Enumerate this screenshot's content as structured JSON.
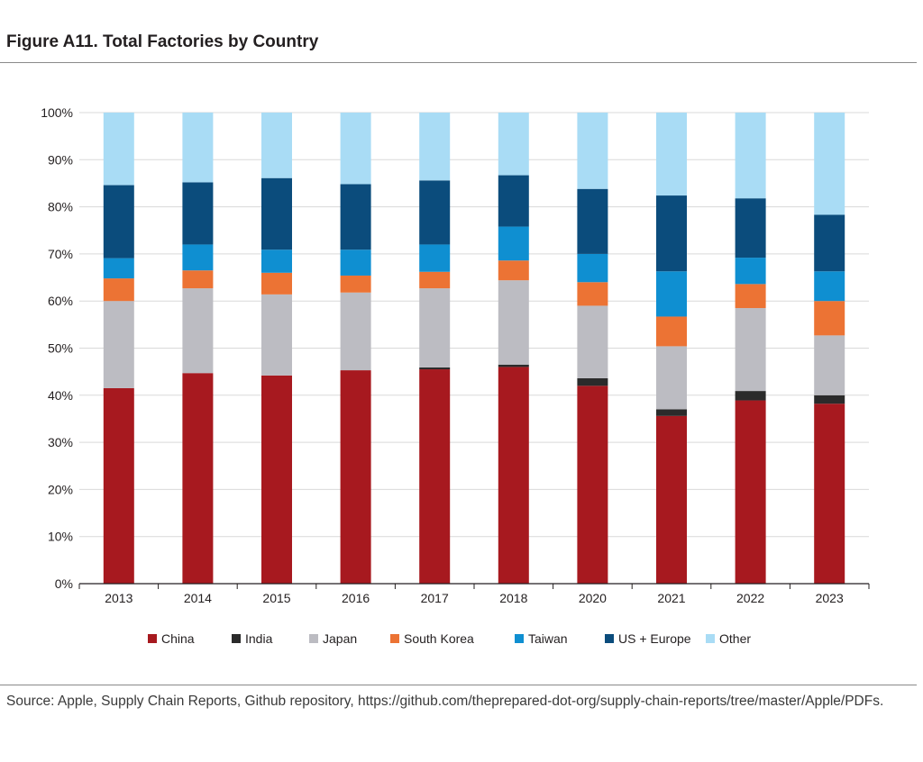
{
  "figure": {
    "title": "Figure A11. Total Factories by Country",
    "source": "Source: Apple, Supply Chain Reports, Github repository, https://github.com/theprepared-dot-org/supply-chain-reports/tree/master/Apple/PDFs."
  },
  "chart_data": {
    "type": "bar",
    "stacked": true,
    "title": "",
    "xlabel": "",
    "ylabel": "",
    "ylim": [
      0,
      100
    ],
    "yticks": [
      "0%",
      "10%",
      "20%",
      "30%",
      "40%",
      "50%",
      "60%",
      "70%",
      "80%",
      "90%",
      "100%"
    ],
    "grid": true,
    "legend_position": "bottom",
    "categories": [
      "2013",
      "2014",
      "2015",
      "2016",
      "2017",
      "2018",
      "2020",
      "2021",
      "2022",
      "2023"
    ],
    "series": [
      {
        "name": "China",
        "color": "#a7191f",
        "values": [
          41.5,
          44.7,
          44.2,
          45.3,
          45.5,
          46.0,
          42.0,
          35.6,
          38.9,
          38.2
        ]
      },
      {
        "name": "India",
        "color": "#2b2b2b",
        "values": [
          0.0,
          0.0,
          0.0,
          0.0,
          0.4,
          0.5,
          1.6,
          1.4,
          2.0,
          1.8
        ]
      },
      {
        "name": "Japan",
        "color": "#bcbcc2",
        "values": [
          18.5,
          18.0,
          17.2,
          16.5,
          16.8,
          17.9,
          15.4,
          13.4,
          17.6,
          12.7
        ]
      },
      {
        "name": "South Korea",
        "color": "#ec7334",
        "values": [
          4.8,
          3.8,
          4.6,
          3.6,
          3.5,
          4.2,
          5.0,
          6.3,
          5.1,
          7.3
        ]
      },
      {
        "name": "Taiwan",
        "color": "#0f8fd1",
        "values": [
          4.3,
          5.5,
          4.9,
          5.5,
          5.8,
          7.2,
          6.0,
          9.6,
          5.6,
          6.3
        ]
      },
      {
        "name": "US + Europe",
        "color": "#0b4c7c",
        "values": [
          15.5,
          13.2,
          15.2,
          13.9,
          13.6,
          10.9,
          13.8,
          16.1,
          12.6,
          12.0
        ]
      },
      {
        "name": "Other",
        "color": "#a9dcf5",
        "values": [
          15.4,
          14.8,
          13.9,
          15.2,
          14.4,
          13.3,
          16.2,
          17.6,
          18.2,
          21.7
        ]
      }
    ]
  }
}
